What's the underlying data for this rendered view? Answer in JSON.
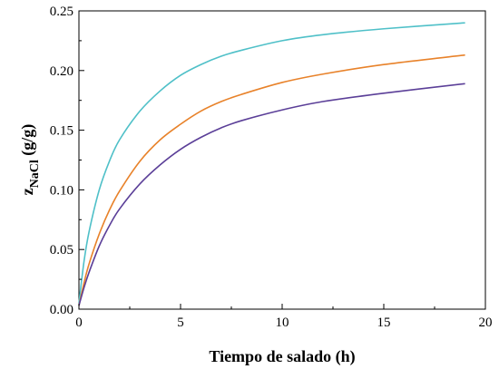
{
  "chart_data": {
    "type": "line",
    "xlabel": "Tiempo de salado (h)",
    "ylabel_main": "z",
    "ylabel_sub": "NaCl",
    "ylabel_rest": " (g/g)",
    "xlim": [
      0,
      20
    ],
    "ylim": [
      0,
      0.25
    ],
    "x_ticks": [
      "0",
      "5",
      "10",
      "15",
      "20"
    ],
    "y_ticks": [
      "0.00",
      "0.05",
      "0.10",
      "0.15",
      "0.20",
      "0.25"
    ],
    "grid": false,
    "legend": "none",
    "series": [
      {
        "color": "#4fc0c8",
        "x": [
          0,
          0.25,
          0.5,
          1,
          1.5,
          2,
          3,
          4,
          5,
          6,
          7,
          8,
          10,
          12,
          15,
          19
        ],
        "y": [
          0.005,
          0.04,
          0.065,
          0.1,
          0.124,
          0.142,
          0.166,
          0.183,
          0.196,
          0.205,
          0.212,
          0.217,
          0.225,
          0.23,
          0.235,
          0.24
        ]
      },
      {
        "color": "#e8822a",
        "x": [
          0,
          0.25,
          0.5,
          1,
          1.5,
          2,
          3,
          4,
          5,
          6,
          7,
          8,
          10,
          12,
          15,
          19
        ],
        "y": [
          0.003,
          0.022,
          0.038,
          0.063,
          0.083,
          0.099,
          0.124,
          0.142,
          0.155,
          0.166,
          0.174,
          0.18,
          0.19,
          0.197,
          0.205,
          0.213
        ]
      },
      {
        "color": "#5b3f98",
        "x": [
          0,
          0.25,
          0.5,
          1,
          1.5,
          2,
          3,
          4,
          5,
          6,
          7,
          8,
          10,
          12,
          15,
          19
        ],
        "y": [
          0.003,
          0.018,
          0.031,
          0.053,
          0.07,
          0.084,
          0.105,
          0.121,
          0.134,
          0.144,
          0.152,
          0.158,
          0.167,
          0.174,
          0.181,
          0.189
        ]
      }
    ]
  }
}
